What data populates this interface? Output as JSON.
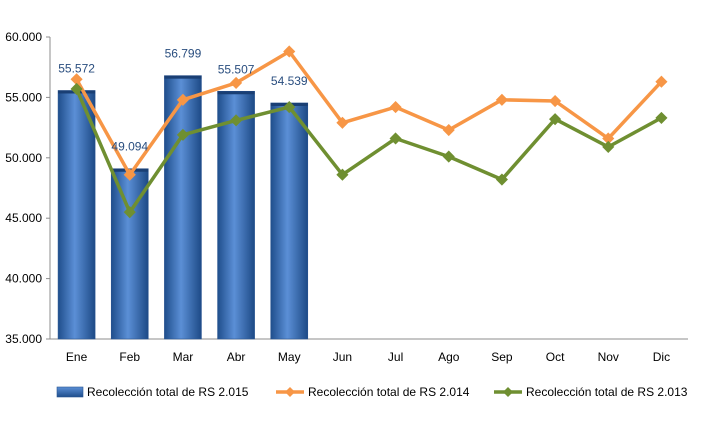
{
  "chart_data": {
    "type": "bar",
    "categories": [
      "Ene",
      "Feb",
      "Mar",
      "Abr",
      "May",
      "Jun",
      "Jul",
      "Ago",
      "Sep",
      "Oct",
      "Nov",
      "Dic"
    ],
    "ylim": [
      35000,
      60000
    ],
    "ytick_values": [
      35000,
      40000,
      45000,
      50000,
      55000,
      60000
    ],
    "ytick_labels": [
      "35.000",
      "40.000",
      "45.000",
      "50.000",
      "55.000",
      "60.000"
    ],
    "grid": false,
    "legend_position": "bottom",
    "series": [
      {
        "name": "Recolección total de RS 2.015",
        "type": "bar",
        "color": "#3a6fb8",
        "values": [
          55572,
          49094,
          56799,
          55507,
          54539,
          null,
          null,
          null,
          null,
          null,
          null,
          null
        ],
        "data_labels": [
          "55.572",
          "49.094",
          "56.799",
          "55.507",
          "54.539",
          "",
          "",
          "",
          "",
          "",
          "",
          ""
        ]
      },
      {
        "name": "Recolección total de RS 2.014",
        "type": "line",
        "color": "#f79646",
        "values": [
          56500,
          48600,
          54800,
          56200,
          58800,
          52900,
          54200,
          52300,
          54800,
          54700,
          51600,
          56300
        ]
      },
      {
        "name": "Recolección total de RS 2.013",
        "type": "line",
        "color": "#6f8f31",
        "values": [
          55700,
          45500,
          51900,
          53100,
          54200,
          48600,
          51600,
          50100,
          48200,
          53200,
          50900,
          53300
        ]
      }
    ]
  }
}
